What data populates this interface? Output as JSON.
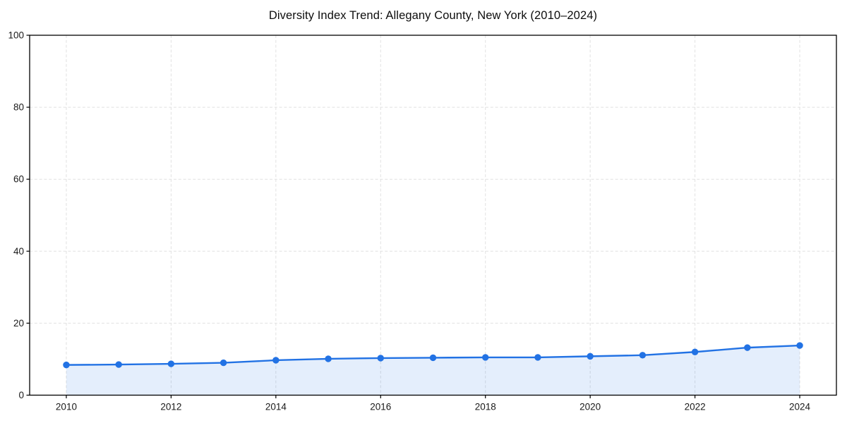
{
  "chart_data": {
    "type": "line",
    "title": "Diversity Index Trend: Allegany County, New York (2010–2024)",
    "series_name": "Diversity Index",
    "x": [
      2010,
      2011,
      2012,
      2013,
      2014,
      2015,
      2016,
      2017,
      2018,
      2019,
      2020,
      2021,
      2022,
      2023,
      2024
    ],
    "values": [
      8.4,
      8.5,
      8.7,
      9.0,
      9.7,
      10.1,
      10.3,
      10.4,
      10.5,
      10.5,
      10.8,
      11.1,
      12.0,
      13.2,
      13.8
    ],
    "xlabel": "",
    "ylabel": "",
    "xlim_data": [
      2010,
      2024
    ],
    "ylim": [
      0,
      100
    ],
    "xticks": [
      2010,
      2012,
      2014,
      2016,
      2018,
      2020,
      2022,
      2024
    ],
    "yticks": [
      0,
      20,
      40,
      60,
      80,
      100
    ],
    "grid": true,
    "grid_style": "dashed",
    "legend_position": "none",
    "marker": "circle",
    "area_fill": true,
    "colors": {
      "line": "#2272e4",
      "marker": "#2272e4",
      "fill": "#2272e4",
      "fill_opacity": 0.12,
      "grid": "#e1e1e1",
      "spine": "#000000",
      "tick_text": "#1a1a1a",
      "background": "#ffffff"
    }
  }
}
